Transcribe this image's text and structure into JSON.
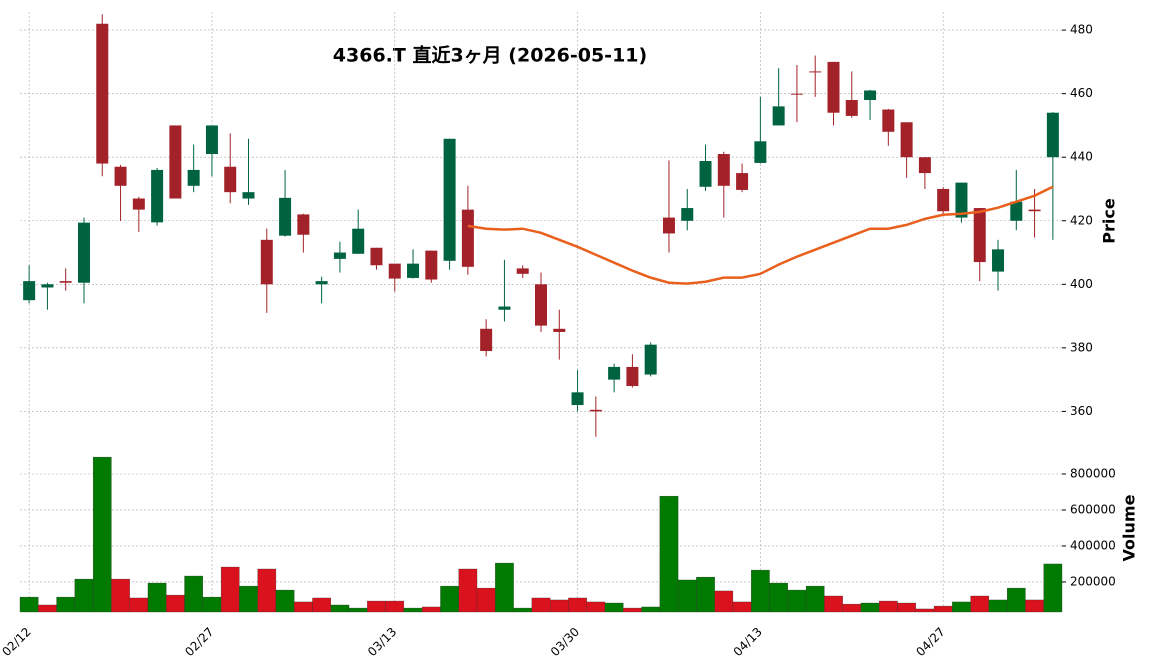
{
  "chart_data": {
    "type": "candlestick",
    "title": "4366.T  直近3ヶ月  (2026-05-11)",
    "ylabel": "Price",
    "y2label": "Volume",
    "categories": [
      "02/12",
      null,
      null,
      null,
      null,
      null,
      null,
      null,
      null,
      null,
      "02/27",
      null,
      null,
      null,
      null,
      null,
      null,
      null,
      null,
      null,
      "03/13",
      null,
      null,
      null,
      null,
      null,
      null,
      null,
      null,
      null,
      "03/30",
      null,
      null,
      null,
      null,
      null,
      null,
      null,
      null,
      null,
      "04/13",
      null,
      null,
      null,
      null,
      null,
      null,
      null,
      null,
      null,
      "04/27",
      null,
      null,
      null,
      null,
      null,
      null
    ],
    "open": [
      395,
      399,
      401,
      400.5,
      482,
      437,
      427,
      419.5,
      450,
      431,
      441,
      437,
      427,
      414,
      415.3,
      422,
      400,
      408,
      409.6,
      411.5,
      406.5,
      402,
      410.6,
      407.4,
      423.5,
      386,
      392,
      405,
      400,
      386,
      362,
      360.5,
      370,
      374,
      371.6,
      421,
      420,
      430.7,
      441,
      435,
      438.2,
      450,
      460,
      467,
      470,
      458,
      458,
      455,
      451,
      440,
      430,
      421,
      424,
      404,
      420,
      423.5,
      440
    ],
    "high": [
      406,
      400.5,
      405,
      421,
      485,
      437.6,
      427.5,
      436.6,
      450,
      444,
      450,
      447.5,
      445.8,
      417.5,
      436,
      422.2,
      402.4,
      413.4,
      423.5,
      411.5,
      406.5,
      411,
      410.6,
      445.8,
      431,
      389,
      407.7,
      406,
      403.7,
      392,
      373,
      364.7,
      375,
      378,
      381.7,
      439,
      430,
      444,
      441.7,
      438,
      459,
      468,
      469,
      472,
      470,
      467,
      461.2,
      455.2,
      451,
      440,
      430.6,
      432,
      424,
      414,
      436,
      430,
      454.2
    ],
    "low": [
      394,
      392,
      398,
      394,
      434,
      420,
      416.5,
      418.5,
      427,
      429,
      434,
      425.5,
      425,
      391,
      415,
      410,
      394,
      403.7,
      409.6,
      404.6,
      397.7,
      401.8,
      400.5,
      404.6,
      403,
      377.3,
      388.3,
      402,
      385,
      376.3,
      360,
      352,
      366,
      367.5,
      371,
      410,
      417,
      429.4,
      421,
      429,
      438,
      450,
      451,
      459,
      450,
      452.4,
      451.7,
      443.6,
      433.5,
      430,
      422,
      419.4,
      401,
      398,
      417,
      414.7,
      414
    ],
    "close": [
      401,
      400,
      400.5,
      419.4,
      438,
      431,
      423.5,
      436,
      427,
      436,
      450,
      429,
      429,
      400,
      427.2,
      415.6,
      401,
      410,
      417.5,
      406,
      401.8,
      406.5,
      401.5,
      445.8,
      405.5,
      379,
      393,
      403.3,
      387,
      385,
      366,
      360,
      374,
      368,
      381,
      416,
      424,
      438.8,
      431,
      429.7,
      445,
      456,
      459.8,
      466.8,
      454,
      453,
      461,
      448,
      440,
      435,
      423,
      432,
      407,
      411,
      426,
      423,
      454
    ],
    "volume": [
      116000,
      72000,
      116000,
      216000,
      894000,
      216000,
      111000,
      194000,
      127000,
      233000,
      116000,
      283000,
      177000,
      272000,
      155000,
      89000,
      111000,
      72000,
      55000,
      94000,
      94000,
      55000,
      61000,
      177000,
      272000,
      166000,
      305000,
      55000,
      111000,
      100000,
      111000,
      89000,
      83000,
      55000,
      61000,
      677000,
      211000,
      227000,
      150000,
      89000,
      266000,
      194000,
      155000,
      177000,
      122000,
      77000,
      83000,
      94000,
      83000,
      50000,
      66000,
      89000,
      122000,
      100000,
      166000,
      100000,
      300000
    ],
    "ma": {
      "color": "#e8601c",
      "values": [
        null,
        null,
        null,
        null,
        null,
        null,
        null,
        null,
        null,
        null,
        null,
        null,
        null,
        null,
        null,
        null,
        null,
        null,
        null,
        null,
        null,
        null,
        null,
        null,
        418.4,
        417.5,
        417.2,
        417.5,
        416.2,
        414,
        411.8,
        409.3,
        406.8,
        404.3,
        402.1,
        400.5,
        400.2,
        400.8,
        402.1,
        402.1,
        403.3,
        406.2,
        408.7,
        410.9,
        413.1,
        415.3,
        417.5,
        417.5,
        418.7,
        420.6,
        421.9,
        422.2,
        422.8,
        424.1,
        426,
        427.9,
        430.7
      ]
    },
    "up_color": "#006340",
    "down_color": "#a3222a",
    "volume_up_color": "#007a00",
    "volume_down_color": "#d9121e",
    "ylim": [
      351,
      485.7
    ],
    "yticks": [
      360,
      380,
      400,
      420,
      440,
      460,
      480
    ],
    "y2lim": [
      33000,
      900000
    ],
    "y2ticks": [
      200000,
      400000,
      600000,
      800000
    ],
    "grid": true
  }
}
